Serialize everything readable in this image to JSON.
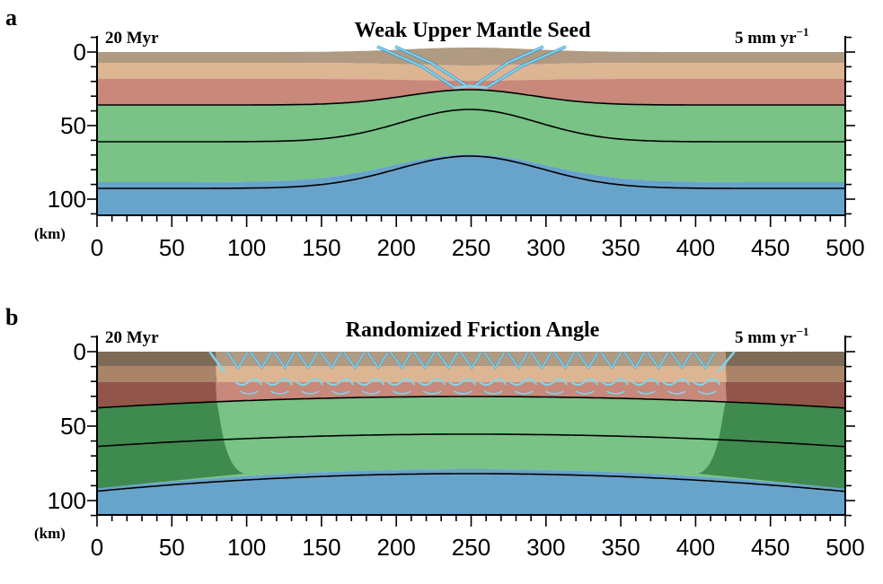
{
  "colors": {
    "layer1": "#b09a82",
    "layer2": "#dcb593",
    "layer3": "#c8887a",
    "lower_crust": "#78c385",
    "mantle": "#68a3cb",
    "layer1_outer": "#7d6b58",
    "layer2_outer": "#a98468",
    "layer3_outer": "#91554a",
    "lower_crust_outer": "#3f8a4f",
    "fault": "#7fd6ee",
    "fault_dark": "#2a8ccf"
  },
  "x_axis": {
    "ticks": [
      "0",
      "50",
      "100",
      "150",
      "200",
      "250",
      "300",
      "350",
      "400",
      "450",
      "500"
    ]
  },
  "y_axis": {
    "ticks": [
      "0",
      "50",
      "100"
    ],
    "unit": "(km)"
  },
  "panels": [
    {
      "letter": "a",
      "title": "Weak Upper Mantle Seed",
      "time": "20 Myr",
      "rate_prefix": "5 mm yr",
      "rate_exp": "−1"
    },
    {
      "letter": "b",
      "title": "Randomized Friction Angle",
      "time": "20 Myr",
      "rate_prefix": "5 mm yr",
      "rate_exp": "−1"
    }
  ]
}
